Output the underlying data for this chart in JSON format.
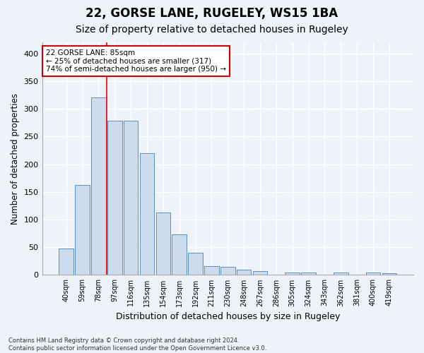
{
  "title1": "22, GORSE LANE, RUGELEY, WS15 1BA",
  "title2": "Size of property relative to detached houses in Rugeley",
  "xlabel": "Distribution of detached houses by size in Rugeley",
  "ylabel": "Number of detached properties",
  "footnote": "Contains HM Land Registry data © Crown copyright and database right 2024.\nContains public sector information licensed under the Open Government Licence v3.0.",
  "bin_labels": [
    "40sqm",
    "59sqm",
    "78sqm",
    "97sqm",
    "116sqm",
    "135sqm",
    "154sqm",
    "173sqm",
    "192sqm",
    "211sqm",
    "230sqm",
    "248sqm",
    "267sqm",
    "286sqm",
    "305sqm",
    "324sqm",
    "343sqm",
    "362sqm",
    "381sqm",
    "400sqm",
    "419sqm"
  ],
  "bar_heights": [
    48,
    163,
    321,
    278,
    278,
    220,
    113,
    73,
    40,
    16,
    15,
    9,
    7,
    0,
    4,
    4,
    0,
    4,
    0,
    4,
    3
  ],
  "bar_color": "#ccdcec",
  "bar_edge_color": "#5a8fc2",
  "red_line_x": 2.5,
  "annotation_title": "22 GORSE LANE: 85sqm",
  "annotation_line1": "← 25% of detached houses are smaller (317)",
  "annotation_line2": "74% of semi-detached houses are larger (950) →",
  "annotation_box_color": "#ffffff",
  "annotation_box_edge": "#cc0000",
  "ylim": [
    0,
    420
  ],
  "yticks": [
    0,
    50,
    100,
    150,
    200,
    250,
    300,
    350,
    400
  ],
  "bg_color": "#eef2f9",
  "grid_color": "#ffffff",
  "title1_fontsize": 12,
  "title2_fontsize": 10
}
